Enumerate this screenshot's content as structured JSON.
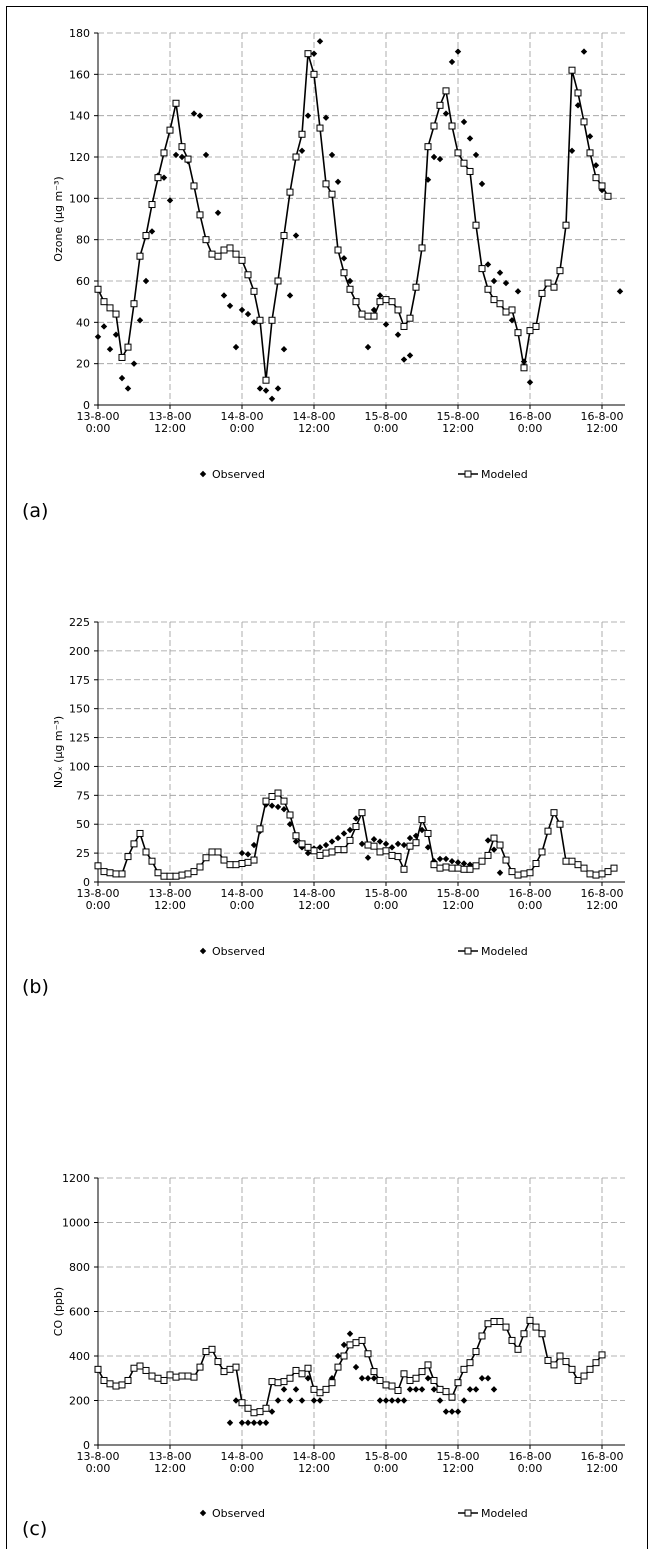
{
  "chart_data": [
    {
      "type": "line",
      "panel_label": "(a)",
      "y_label": "Ozone (µg m⁻³)",
      "categories": [
        "13-8-00 0:00",
        null,
        null,
        null,
        null,
        null,
        null,
        null,
        null,
        null,
        null,
        null,
        "13-8-00 12:00",
        null,
        null,
        null,
        null,
        null,
        null,
        null,
        null,
        null,
        null,
        null,
        "14-8-00 0:00",
        null,
        null,
        null,
        null,
        null,
        null,
        null,
        null,
        null,
        null,
        null,
        "14-8-00 12:00",
        null,
        null,
        null,
        null,
        null,
        null,
        null,
        null,
        null,
        null,
        null,
        "15-8-00 0:00",
        null,
        null,
        null,
        null,
        null,
        null,
        null,
        null,
        null,
        null,
        null,
        "15-8-00 12:00",
        null,
        null,
        null,
        null,
        null,
        null,
        null,
        null,
        null,
        null,
        null,
        "16-8-00 0:00",
        null,
        null,
        null,
        null,
        null,
        null,
        null,
        null,
        null,
        null,
        null,
        "16-8-00 12:00",
        null,
        null,
        null
      ],
      "series": [
        {
          "name": "Observed",
          "color": "#000000",
          "marker": "diamond",
          "line": false,
          "values": [
            33,
            38,
            27,
            34,
            13,
            8,
            20,
            41,
            60,
            84,
            111,
            110,
            99,
            121,
            120,
            118,
            141,
            140,
            121,
            null,
            93,
            53,
            48,
            28,
            46,
            44,
            40,
            8,
            7,
            3,
            8,
            27,
            53,
            82,
            123,
            140,
            170,
            176,
            139,
            121,
            108,
            71,
            60,
            null,
            44,
            28,
            46,
            53,
            39,
            null,
            34,
            22,
            24,
            null,
            null,
            109,
            120,
            119,
            141,
            166,
            171,
            137,
            129,
            121,
            107,
            68,
            60,
            64,
            59,
            41,
            55,
            21,
            11,
            null,
            null,
            null,
            null,
            null,
            null,
            123,
            145,
            171,
            130,
            116,
            104,
            null,
            null,
            55
          ]
        },
        {
          "name": "Modeled",
          "color": "#000000",
          "marker": "square",
          "line": true,
          "values": [
            56,
            50,
            47,
            44,
            23,
            28,
            49,
            72,
            82,
            97,
            110,
            122,
            133,
            146,
            125,
            119,
            106,
            92,
            80,
            73,
            72,
            75,
            76,
            73,
            70,
            63,
            55,
            41,
            12,
            41,
            60,
            82,
            103,
            120,
            131,
            170,
            160,
            134,
            107,
            102,
            75,
            64,
            56,
            50,
            44,
            43,
            43,
            50,
            51,
            50,
            46,
            38,
            42,
            57,
            76,
            125,
            135,
            145,
            152,
            135,
            122,
            117,
            113,
            87,
            66,
            56,
            51,
            49,
            45,
            46,
            35,
            18,
            36,
            38,
            54,
            59,
            57,
            65,
            87,
            162,
            151,
            137,
            122,
            110,
            106,
            101,
            null,
            null
          ]
        }
      ],
      "ylim": [
        0,
        180
      ],
      "yticks": [
        0,
        20,
        40,
        60,
        80,
        100,
        120,
        140,
        160,
        180
      ],
      "grid": true
    },
    {
      "type": "line",
      "panel_label": "(b)",
      "y_label": "NOₓ (µg m⁻³)",
      "categories": [
        "13-8-00 0:00",
        null,
        null,
        null,
        null,
        null,
        null,
        null,
        null,
        null,
        null,
        null,
        "13-8-00 12:00",
        null,
        null,
        null,
        null,
        null,
        null,
        null,
        null,
        null,
        null,
        null,
        "14-8-00 0:00",
        null,
        null,
        null,
        null,
        null,
        null,
        null,
        null,
        null,
        null,
        null,
        "14-8-00 12:00",
        null,
        null,
        null,
        null,
        null,
        null,
        null,
        null,
        null,
        null,
        null,
        "15-8-00 0:00",
        null,
        null,
        null,
        null,
        null,
        null,
        null,
        null,
        null,
        null,
        null,
        "15-8-00 12:00",
        null,
        null,
        null,
        null,
        null,
        null,
        null,
        null,
        null,
        null,
        null,
        "16-8-00 0:00",
        null,
        null,
        null,
        null,
        null,
        null,
        null,
        null,
        null,
        null,
        null,
        "16-8-00 12:00",
        null,
        null,
        null
      ],
      "series": [
        {
          "name": "Observed",
          "color": "#000000",
          "marker": "diamond",
          "line": false,
          "values": [
            null,
            null,
            null,
            null,
            null,
            null,
            null,
            null,
            null,
            null,
            null,
            null,
            null,
            null,
            null,
            null,
            null,
            null,
            null,
            null,
            null,
            null,
            null,
            null,
            25,
            24,
            32,
            44,
            67,
            66,
            65,
            63,
            50,
            35,
            30,
            25,
            29,
            30,
            32,
            35,
            38,
            42,
            45,
            55,
            33,
            21,
            37,
            35,
            33,
            30,
            33,
            32,
            38,
            40,
            45,
            30,
            18,
            20,
            20,
            18,
            17,
            16,
            15,
            null,
            null,
            36,
            28,
            8,
            null,
            null,
            null,
            null,
            null,
            null,
            null,
            null,
            null,
            null,
            null,
            null,
            null,
            null,
            null,
            null,
            null,
            null,
            null,
            null
          ]
        },
        {
          "name": "Modeled",
          "color": "#000000",
          "marker": "square",
          "line": true,
          "values": [
            14,
            9,
            8,
            7,
            7,
            22,
            33,
            42,
            26,
            18,
            8,
            5,
            5,
            5,
            6,
            7,
            9,
            13,
            21,
            26,
            26,
            19,
            15,
            15,
            16,
            17,
            19,
            46,
            70,
            74,
            77,
            70,
            58,
            40,
            33,
            30,
            27,
            23,
            25,
            26,
            28,
            28,
            36,
            48,
            60,
            32,
            31,
            26,
            27,
            23,
            22,
            11,
            31,
            34,
            54,
            42,
            15,
            12,
            13,
            12,
            12,
            11,
            11,
            14,
            18,
            23,
            38,
            32,
            19,
            9,
            6,
            7,
            8,
            16,
            26,
            44,
            60,
            50,
            18,
            18,
            15,
            12,
            7,
            6,
            7,
            9,
            12,
            null
          ]
        }
      ],
      "ylim": [
        0,
        225
      ],
      "yticks": [
        0,
        25,
        50,
        75,
        100,
        125,
        150,
        175,
        200,
        225
      ],
      "grid": true
    },
    {
      "type": "line",
      "panel_label": "(c)",
      "y_label": "CO (ppb)",
      "categories": [
        "13-8-00 0:00",
        null,
        null,
        null,
        null,
        null,
        null,
        null,
        null,
        null,
        null,
        null,
        "13-8-00 12:00",
        null,
        null,
        null,
        null,
        null,
        null,
        null,
        null,
        null,
        null,
        null,
        "14-8-00 0:00",
        null,
        null,
        null,
        null,
        null,
        null,
        null,
        null,
        null,
        null,
        null,
        "14-8-00 12:00",
        null,
        null,
        null,
        null,
        null,
        null,
        null,
        null,
        null,
        null,
        null,
        "15-8-00 0:00",
        null,
        null,
        null,
        null,
        null,
        null,
        null,
        null,
        null,
        null,
        null,
        "15-8-00 12:00",
        null,
        null,
        null,
        null,
        null,
        null,
        null,
        null,
        null,
        null,
        null,
        "16-8-00 0:00",
        null,
        null,
        null,
        null,
        null,
        null,
        null,
        null,
        null,
        null,
        null,
        "16-8-00 12:00",
        null,
        null,
        null
      ],
      "series": [
        {
          "name": "Observed",
          "color": "#000000",
          "marker": "diamond",
          "line": false,
          "values": [
            null,
            null,
            null,
            null,
            null,
            null,
            null,
            null,
            null,
            null,
            null,
            null,
            null,
            null,
            null,
            null,
            null,
            null,
            null,
            null,
            null,
            null,
            100,
            200,
            100,
            100,
            100,
            100,
            100,
            150,
            200,
            250,
            200,
            250,
            200,
            300,
            200,
            200,
            250,
            300,
            400,
            450,
            500,
            350,
            300,
            300,
            300,
            200,
            200,
            200,
            200,
            200,
            250,
            250,
            250,
            300,
            250,
            200,
            150,
            150,
            150,
            200,
            250,
            250,
            300,
            300,
            250,
            null,
            null,
            null,
            null,
            null,
            null,
            null,
            null,
            null,
            null,
            null,
            null,
            null,
            null,
            null,
            null,
            null,
            null,
            null,
            null,
            null
          ]
        },
        {
          "name": "Modeled",
          "color": "#000000",
          "marker": "square",
          "line": true,
          "values": [
            340,
            290,
            275,
            265,
            270,
            290,
            345,
            355,
            335,
            310,
            300,
            290,
            315,
            305,
            310,
            310,
            305,
            350,
            420,
            430,
            375,
            330,
            340,
            350,
            190,
            165,
            145,
            150,
            165,
            285,
            280,
            285,
            300,
            335,
            320,
            345,
            250,
            235,
            250,
            280,
            350,
            400,
            450,
            460,
            470,
            410,
            330,
            290,
            270,
            265,
            245,
            320,
            290,
            300,
            330,
            360,
            290,
            250,
            240,
            215,
            280,
            340,
            370,
            420,
            490,
            545,
            555,
            555,
            530,
            470,
            430,
            500,
            560,
            530,
            500,
            380,
            360,
            400,
            375,
            340,
            290,
            310,
            340,
            370,
            405,
            null,
            null,
            null
          ]
        }
      ],
      "ylim": [
        0,
        1200
      ],
      "yticks": [
        0,
        200,
        400,
        600,
        800,
        1000,
        1200
      ],
      "grid": true
    }
  ]
}
